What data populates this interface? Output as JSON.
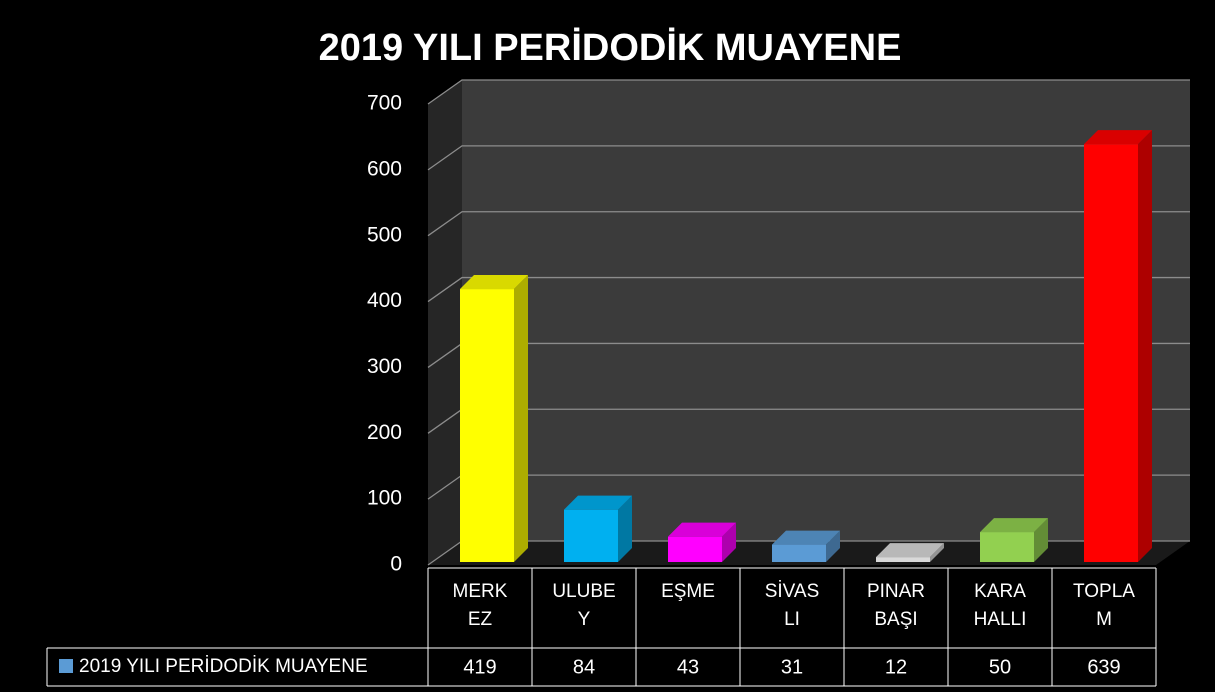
{
  "chart_data": {
    "type": "bar3d",
    "title": "2019 YILI PERİDODİK MUAYENE",
    "categories": [
      "MERKEZ",
      "ULUBEY",
      "EŞME",
      "SİVASLI",
      "PINARBAŞI",
      "KARAHALLI",
      "TOPLAM"
    ],
    "series": [
      {
        "name": "2019 YILI PERİDODİK MUAYENE",
        "color": "#5b9bd5",
        "values": [
          419,
          84,
          43,
          31,
          12,
          50,
          639
        ],
        "colors": [
          "#ffff00",
          "#00b0f0",
          "#ff00ff",
          "#5b9bd5",
          "#d9d9d9",
          "#92d050",
          "#ff0000"
        ]
      }
    ],
    "ylim": [
      0,
      700
    ],
    "yticks": [
      0,
      100,
      200,
      300,
      400,
      500,
      600,
      700
    ],
    "grid": true
  }
}
